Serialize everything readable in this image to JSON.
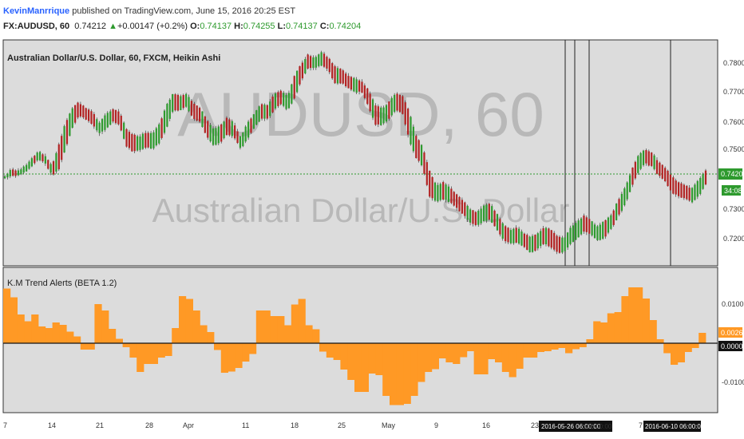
{
  "header": {
    "author": "KevinManrrique",
    "published_text": "published on TradingView.com, June 15, 2016 20:25 EST",
    "symbol": "FX:AUDUSD, 60",
    "last": "0.74212",
    "up_arrow": "▲",
    "change": "+0.00147 (+0.2%)",
    "o_label": "O:",
    "open": "0.74137",
    "h_label": "H:",
    "high": "0.74255",
    "l_label": "L:",
    "low": "0.74137",
    "c_label": "C:",
    "close": "0.74204"
  },
  "main_pane": {
    "legend": "Australian Dollar/U.S. Dollar, 60, FXCM, Heikin Ashi",
    "watermark_symbol": "AUDUSD, 60",
    "watermark_name": "Australian Dollar/U.S. Dollar",
    "price_labels": [
      "0.78000",
      "0.77000",
      "0.76000",
      "0.75000",
      "0.73000",
      "0.72000"
    ],
    "last_price_label": "0.74204",
    "countdown_label": "34:08"
  },
  "indicator_pane": {
    "legend": "K.M Trend Alerts (BETA 1.2)",
    "axis_labels": [
      "0.0100",
      "-0.0100"
    ],
    "current_value_label": "0.0026",
    "zero_label": "0.0000"
  },
  "x_axis": {
    "labels": [
      "14",
      "21",
      "28",
      "Apr",
      "11",
      "18",
      "25",
      "May",
      "9",
      "16",
      "23",
      "7"
    ],
    "first_label": "7",
    "crosshair_label_1": "2016-05-26 06:00:00",
    "crosshair_label_2": "2016-06-10 06:00:00",
    "crosshair_overflow_text": ":00 00:00"
  },
  "colors": {
    "up_candle": "#2e9a2e",
    "down_candle": "#b22222",
    "histogram": "#ff9925",
    "last_price": "#2e9a2e",
    "pane_background": "#dcdcdc",
    "author_link": "#2962ff"
  },
  "chart_data": {
    "type": "candlestick",
    "price_axis": {
      "ticks": [
        0.72,
        0.73,
        0.75,
        0.76,
        0.77,
        0.78
      ],
      "last_price": 0.74204
    },
    "price_path": [
      [
        0.742,
        0.741
      ],
      [
        0.7445,
        0.7418
      ],
      [
        0.744,
        0.742
      ],
      [
        0.7455,
        0.743
      ],
      [
        0.748,
        0.745
      ],
      [
        0.7505,
        0.7475
      ],
      [
        0.749,
        0.746
      ],
      [
        0.7455,
        0.742
      ],
      [
        0.7525,
        0.744
      ],
      [
        0.76,
        0.751
      ],
      [
        0.765,
        0.758
      ],
      [
        0.767,
        0.762
      ],
      [
        0.765,
        0.761
      ],
      [
        0.764,
        0.759
      ],
      [
        0.76,
        0.756
      ],
      [
        0.763,
        0.7575
      ],
      [
        0.7645,
        0.76
      ],
      [
        0.764,
        0.759
      ],
      [
        0.758,
        0.752
      ],
      [
        0.756,
        0.75
      ],
      [
        0.7555,
        0.7505
      ],
      [
        0.757,
        0.7515
      ],
      [
        0.7565,
        0.751
      ],
      [
        0.76,
        0.753
      ],
      [
        0.766,
        0.758
      ],
      [
        0.77,
        0.764
      ],
      [
        0.769,
        0.764
      ],
      [
        0.77,
        0.765
      ],
      [
        0.7665,
        0.761
      ],
      [
        0.765,
        0.76
      ],
      [
        0.761,
        0.755
      ],
      [
        0.758,
        0.752
      ],
      [
        0.759,
        0.753
      ],
      [
        0.762,
        0.756
      ],
      [
        0.76,
        0.755
      ],
      [
        0.755,
        0.751
      ],
      [
        0.76,
        0.754
      ],
      [
        0.763,
        0.758
      ],
      [
        0.7665,
        0.761
      ],
      [
        0.766,
        0.761
      ],
      [
        0.77,
        0.764
      ],
      [
        0.771,
        0.766
      ],
      [
        0.769,
        0.764
      ],
      [
        0.776,
        0.768
      ],
      [
        0.78,
        0.774
      ],
      [
        0.783,
        0.778
      ],
      [
        0.782,
        0.778
      ],
      [
        0.784,
        0.779
      ],
      [
        0.782,
        0.7775
      ],
      [
        0.779,
        0.773
      ],
      [
        0.778,
        0.773
      ],
      [
        0.776,
        0.7715
      ],
      [
        0.775,
        0.77
      ],
      [
        0.774,
        0.77
      ],
      [
        0.771,
        0.765
      ],
      [
        0.766,
        0.759
      ],
      [
        0.765,
        0.759
      ],
      [
        0.767,
        0.761
      ],
      [
        0.77,
        0.764
      ],
      [
        0.769,
        0.763
      ],
      [
        0.764,
        0.754
      ],
      [
        0.756,
        0.748
      ],
      [
        0.752,
        0.745
      ],
      [
        0.744,
        0.735
      ],
      [
        0.739,
        0.733
      ],
      [
        0.74,
        0.734
      ],
      [
        0.7385,
        0.733
      ],
      [
        0.736,
        0.731
      ],
      [
        0.734,
        0.729
      ],
      [
        0.731,
        0.726
      ],
      [
        0.73,
        0.725
      ],
      [
        0.732,
        0.7265
      ],
      [
        0.733,
        0.727
      ],
      [
        0.7295,
        0.724
      ],
      [
        0.726,
        0.72
      ],
      [
        0.724,
        0.719
      ],
      [
        0.725,
        0.7195
      ],
      [
        0.723,
        0.718
      ],
      [
        0.7215,
        0.716
      ],
      [
        0.7225,
        0.717
      ],
      [
        0.725,
        0.719
      ],
      [
        0.724,
        0.718
      ],
      [
        0.722,
        0.716
      ],
      [
        0.721,
        0.716
      ],
      [
        0.725,
        0.719
      ],
      [
        0.727,
        0.721
      ],
      [
        0.729,
        0.723
      ],
      [
        0.727,
        0.722
      ],
      [
        0.725,
        0.72
      ],
      [
        0.727,
        0.721
      ],
      [
        0.729,
        0.724
      ],
      [
        0.734,
        0.728
      ],
      [
        0.738,
        0.732
      ],
      [
        0.744,
        0.738
      ],
      [
        0.749,
        0.743
      ],
      [
        0.751,
        0.746
      ],
      [
        0.75,
        0.745
      ],
      [
        0.747,
        0.742
      ],
      [
        0.745,
        0.74
      ],
      [
        0.742,
        0.736
      ],
      [
        0.74,
        0.735
      ],
      [
        0.739,
        0.734
      ],
      [
        0.738,
        0.733
      ],
      [
        0.741,
        0.735
      ],
      [
        0.744,
        0.739
      ]
    ],
    "histogram": {
      "axis_ticks": [
        0.01,
        0.0,
        -0.01
      ],
      "current_value": 0.0026,
      "values": [
        0.0137,
        0.0115,
        0.0072,
        0.0055,
        0.0072,
        0.0042,
        0.0038,
        0.0052,
        0.0046,
        0.0029,
        0.0017,
        -0.0016,
        -0.0016,
        0.0098,
        0.0082,
        0.0036,
        0.0011,
        -0.001,
        -0.0036,
        -0.0072,
        -0.0052,
        -0.0052,
        -0.0036,
        -0.0032,
        0.0038,
        0.0118,
        0.0111,
        0.0082,
        0.0045,
        0.0028,
        -0.0017,
        -0.0074,
        -0.0071,
        -0.0062,
        -0.0046,
        -0.0027,
        0.0082,
        0.0082,
        0.0068,
        0.0068,
        0.0045,
        0.0097,
        0.0111,
        0.0045,
        0.0035,
        -0.0021,
        -0.0036,
        -0.0042,
        -0.0066,
        -0.0092,
        -0.0122,
        -0.0122,
        -0.0076,
        -0.008,
        -0.0132,
        -0.0155,
        -0.0155,
        -0.0152,
        -0.0132,
        -0.0097,
        -0.0072,
        -0.0065,
        -0.0038,
        -0.0048,
        -0.0052,
        -0.0035,
        -0.002,
        -0.0078,
        -0.0078,
        -0.004,
        -0.0048,
        -0.0072,
        -0.0085,
        -0.0064,
        -0.0036,
        -0.0036,
        -0.0022,
        -0.002,
        -0.0016,
        -0.0012,
        -0.0025,
        -0.0015,
        -0.001,
        0.001,
        0.0055,
        0.0052,
        0.0075,
        0.0078,
        0.0118,
        0.014,
        0.014,
        0.0112,
        0.0058,
        0.001,
        -0.0025,
        -0.0054,
        -0.0048,
        -0.0022,
        -0.0012,
        0.0026
      ]
    }
  }
}
